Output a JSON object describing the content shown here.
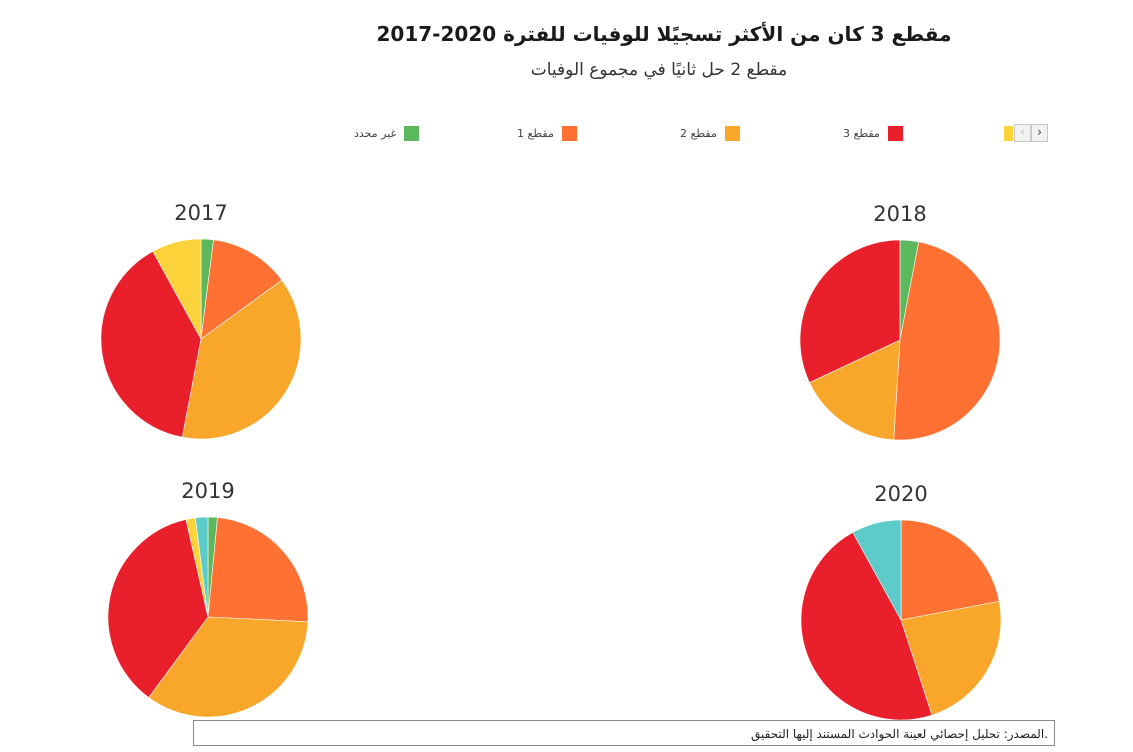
{
  "title": "مقطع 3 كان من الأكثر تسجيًلا للوفيات للفترة 2020-2017",
  "subtitle": "مقطع 2 حل ثانيًا في مجموع الوفيات",
  "legend": {
    "items": [
      {
        "label": "غير محدد",
        "color": "#5cb85c"
      },
      {
        "label": "مقطع 1",
        "color": "#ff7132"
      },
      {
        "label": "مقطع 2",
        "color": "#f9a72b"
      },
      {
        "label": "مقطع 3",
        "color": "#e9202b"
      }
    ],
    "peek_color": "#fcd33a",
    "prev_icon": "‹",
    "next_icon": "›"
  },
  "chart_data": [
    {
      "type": "pie",
      "title": "2017",
      "start_angle": 0,
      "direction": "clockwise",
      "slices": [
        {
          "label": "غير محدد",
          "value": 2,
          "color": "#5cb85c"
        },
        {
          "label": "مقطع 1",
          "value": 13,
          "color": "#ff7132"
        },
        {
          "label": "مقطع 2",
          "value": 38,
          "color": "#f9a72b"
        },
        {
          "label": "مقطع 3",
          "value": 39,
          "color": "#e9202b"
        },
        {
          "label": "",
          "value": 8,
          "color": "#fcd33a"
        }
      ]
    },
    {
      "type": "pie",
      "title": "2018",
      "start_angle": 0,
      "direction": "clockwise",
      "slices": [
        {
          "label": "غير محدد",
          "value": 3,
          "color": "#5cb85c"
        },
        {
          "label": "مقطع 1",
          "value": 48,
          "color": "#ff7132"
        },
        {
          "label": "مقطع 2",
          "value": 17,
          "color": "#f9a72b"
        },
        {
          "label": "مقطع 3",
          "value": 32,
          "color": "#e9202b"
        }
      ]
    },
    {
      "type": "pie",
      "title": "2019",
      "start_angle": 0,
      "direction": "clockwise",
      "slices": [
        {
          "label": "غير محدد",
          "value": 1.5,
          "color": "#5cb85c"
        },
        {
          "label": "مقطع 1",
          "value": 24,
          "color": "#ff7132"
        },
        {
          "label": "مقطع 2",
          "value": 34,
          "color": "#f9a72b"
        },
        {
          "label": "مقطع 3",
          "value": 36,
          "color": "#e9202b"
        },
        {
          "label": "",
          "value": 1.5,
          "color": "#fcd33a"
        },
        {
          "label": "",
          "value": 2,
          "color": "#5ecbcb"
        }
      ]
    },
    {
      "type": "pie",
      "title": "2020",
      "start_angle": 0,
      "direction": "clockwise",
      "slices": [
        {
          "label": "مقطع 1",
          "value": 22,
          "color": "#ff7132"
        },
        {
          "label": "مقطع 2",
          "value": 23,
          "color": "#f9a72b"
        },
        {
          "label": "مقطع 3",
          "value": 47,
          "color": "#e9202b"
        },
        {
          "label": "",
          "value": 8,
          "color": "#5ecbcb"
        }
      ]
    }
  ],
  "source": ".المصدر: تحليل إحصائي لعينة الحوادث المستند إليها التحقيق"
}
